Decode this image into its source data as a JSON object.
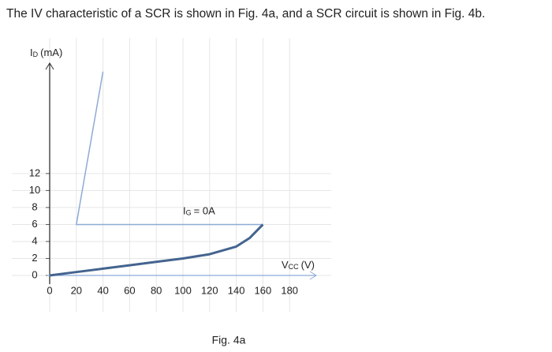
{
  "title": "The IV characteristic of a SCR is shown in Fig. 4a, and a SCR circuit is shown in Fig. 4b.",
  "chart_data": {
    "type": "line",
    "y_label": {
      "main": "I",
      "sub": "D",
      "unit": "(mA)"
    },
    "x_label": {
      "main": "V",
      "sub": "CC",
      "unit": "(V)"
    },
    "annotation": {
      "main": "I",
      "sub": "G",
      "rest": "= 0A",
      "x": 100,
      "y": 7.5
    },
    "caption": "Fig. 4a",
    "xlim": [
      0,
      200
    ],
    "ylim": [
      0,
      25
    ],
    "xticks": [
      0,
      20,
      40,
      60,
      80,
      100,
      120,
      140,
      160,
      180
    ],
    "yticks": [
      0,
      2,
      4,
      6,
      8,
      10,
      12
    ],
    "grid": true,
    "series": [
      {
        "color": "#8eaad6",
        "x": [
          40,
          20,
          160
        ],
        "values": [
          24,
          6,
          6
        ]
      },
      {
        "color": "#44648f",
        "x": [
          0,
          20,
          40,
          60,
          80,
          100,
          120,
          140,
          150,
          160
        ],
        "values": [
          0,
          0.4,
          0.8,
          1.2,
          1.6,
          2.0,
          2.5,
          3.4,
          4.4,
          6
        ]
      }
    ]
  }
}
